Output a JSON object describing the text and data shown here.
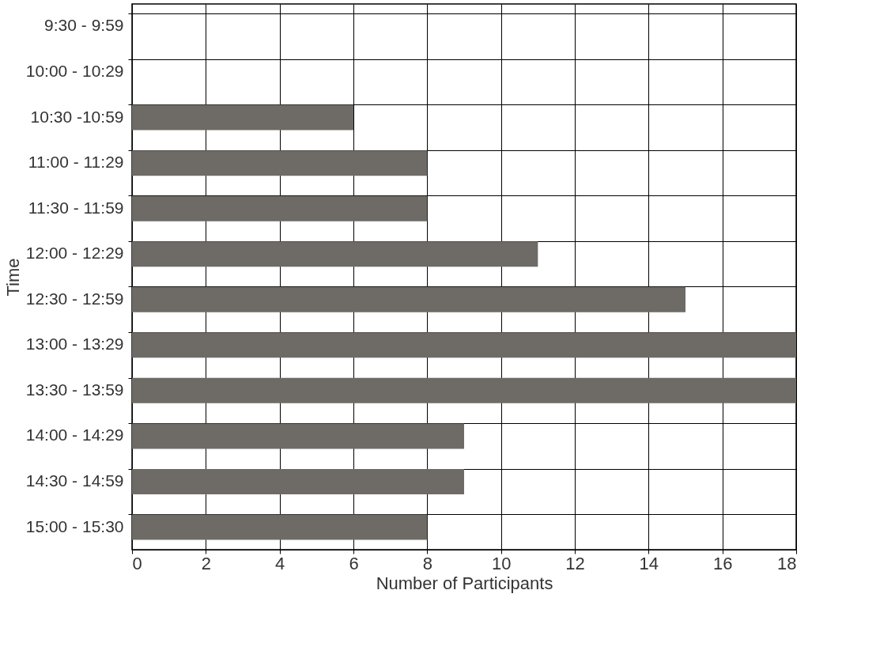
{
  "chart_data": {
    "type": "bar",
    "orientation": "horizontal",
    "xlabel": "Number of Participants",
    "ylabel": "Time",
    "categories": [
      "9:30 - 9:59",
      "10:00 - 10:29",
      "10:30 -10:59",
      "11:00 - 11:29",
      "11:30 - 11:59",
      "12:00 - 12:29",
      "12:30 - 12:59",
      "13:00 - 13:29",
      "13:30 - 13:59",
      "14:00 - 14:29",
      "14:30 - 14:59",
      "15:00 - 15:30"
    ],
    "values": [
      0,
      0,
      6,
      8,
      8,
      11,
      15,
      18,
      18,
      9,
      9,
      8
    ],
    "color": "#6e6a66",
    "xlim": [
      0,
      18
    ],
    "xticks": [
      0,
      2,
      4,
      6,
      8,
      10,
      12,
      14,
      16,
      18
    ],
    "grid": true
  }
}
